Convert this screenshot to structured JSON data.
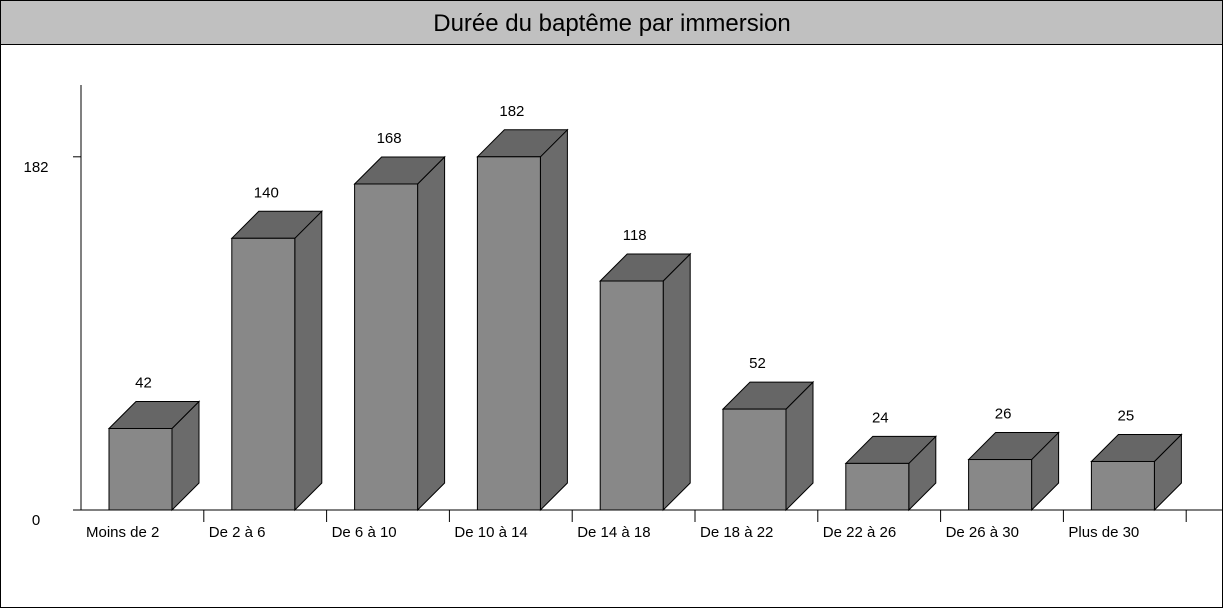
{
  "chart_data": {
    "type": "bar3d",
    "title": "Durée du baptême par immersion",
    "categories": [
      "Moins de 2",
      "De 2 à 6",
      "De 6 à 10",
      "De 10 à 14",
      "De 14 à 18",
      "De 18 à 22",
      "De 22 à 26",
      "De 26 à 30",
      "Plus de 30"
    ],
    "values": [
      42,
      140,
      168,
      182,
      118,
      52,
      24,
      26,
      25
    ],
    "color": "#888888",
    "top_color": "#666666",
    "side_color": "#6b6b6b",
    "ylim": [
      0,
      219
    ],
    "yticks": [
      0,
      182
    ]
  }
}
